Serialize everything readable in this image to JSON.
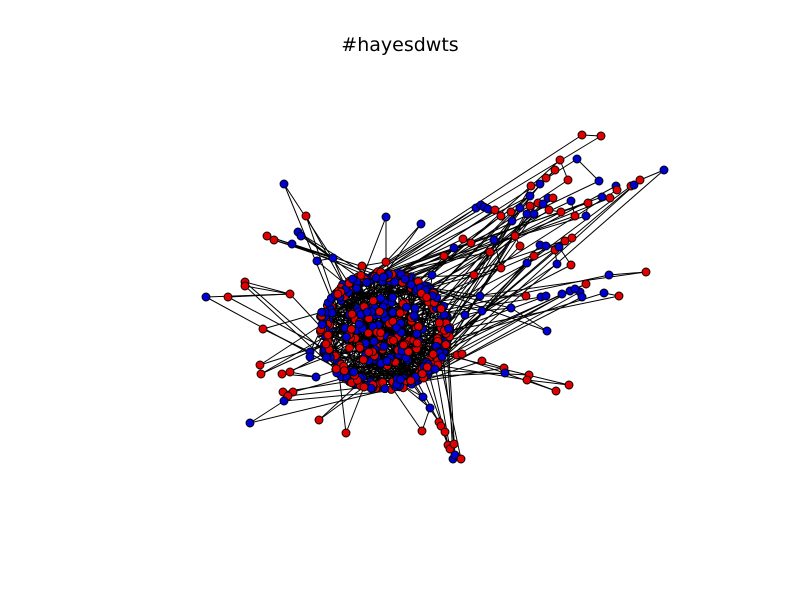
{
  "title": "#hayesdwts",
  "colors": {
    "red": "#e00000",
    "blue": "#0000d0",
    "edge": "#000000",
    "outline": "#000000"
  },
  "graph": {
    "hub_seed": 11,
    "hub_nodes": 460,
    "hub_edges": 330,
    "peripheral_nodes": [
      [
        "blue",
        284,
        184
      ],
      [
        "red",
        306,
        216
      ],
      [
        "blue",
        386,
        217
      ],
      [
        "blue",
        421,
        224
      ],
      [
        "red",
        267,
        236
      ],
      [
        "red",
        274,
        240
      ],
      [
        "blue",
        292,
        244
      ],
      [
        "blue",
        298,
        232
      ],
      [
        "blue",
        301,
        236
      ],
      [
        "blue",
        317,
        261
      ],
      [
        "red",
        386,
        262
      ],
      [
        "red",
        362,
        266
      ],
      [
        "blue",
        333,
        258
      ],
      [
        "red",
        245,
        282
      ],
      [
        "red",
        245,
        286
      ],
      [
        "blue",
        206,
        297
      ],
      [
        "red",
        228,
        297
      ],
      [
        "red",
        290,
        294
      ],
      [
        "red",
        263,
        329
      ],
      [
        "blue",
        310,
        352
      ],
      [
        "blue",
        310,
        357
      ],
      [
        "red",
        326,
        344
      ],
      [
        "red",
        260,
        365
      ],
      [
        "red",
        261,
        374
      ],
      [
        "red",
        290,
        372
      ],
      [
        "red",
        282,
        374
      ],
      [
        "blue",
        316,
        377
      ],
      [
        "red",
        293,
        392
      ],
      [
        "red",
        283,
        392
      ],
      [
        "red",
        288,
        396
      ],
      [
        "blue",
        284,
        401
      ],
      [
        "blue",
        250,
        423
      ],
      [
        "red",
        319,
        420
      ],
      [
        "red",
        346,
        433
      ],
      [
        "red",
        364,
        387
      ],
      [
        "blue",
        423,
        397
      ],
      [
        "blue",
        430,
        408
      ],
      [
        "red",
        422,
        431
      ],
      [
        "red",
        439,
        422
      ],
      [
        "red",
        441,
        426
      ],
      [
        "red",
        445,
        432
      ],
      [
        "red",
        448,
        445
      ],
      [
        "red",
        450,
        449
      ],
      [
        "red",
        454,
        444
      ],
      [
        "blue",
        453,
        459
      ],
      [
        "blue",
        455,
        455
      ],
      [
        "red",
        461,
        459
      ],
      [
        "red",
        457,
        355
      ],
      [
        "red",
        462,
        354
      ],
      [
        "red",
        482,
        361
      ],
      [
        "red",
        504,
        368
      ],
      [
        "blue",
        505,
        373
      ],
      [
        "red",
        529,
        375
      ],
      [
        "red",
        527,
        380
      ],
      [
        "red",
        569,
        385
      ],
      [
        "red",
        556,
        391
      ],
      [
        "blue",
        465,
        315
      ],
      [
        "blue",
        482,
        311
      ],
      [
        "blue",
        511,
        308
      ],
      [
        "blue",
        547,
        331
      ],
      [
        "blue",
        480,
        296
      ],
      [
        "red",
        526,
        296
      ],
      [
        "blue",
        541,
        297
      ],
      [
        "blue",
        546,
        296
      ],
      [
        "blue",
        562,
        294
      ],
      [
        "blue",
        570,
        291
      ],
      [
        "blue",
        580,
        292
      ],
      [
        "blue",
        582,
        297
      ],
      [
        "blue",
        575,
        289
      ],
      [
        "red",
        586,
        284
      ],
      [
        "blue",
        604,
        293
      ],
      [
        "red",
        619,
        296
      ],
      [
        "blue",
        609,
        275
      ],
      [
        "red",
        646,
        272
      ],
      [
        "red",
        463,
        239
      ],
      [
        "red",
        471,
        243
      ],
      [
        "red",
        474,
        275
      ],
      [
        "red",
        490,
        252
      ],
      [
        "blue",
        494,
        240
      ],
      [
        "red",
        501,
        268
      ],
      [
        "red",
        515,
        236
      ],
      [
        "red",
        520,
        246
      ],
      [
        "blue",
        527,
        263
      ],
      [
        "red",
        534,
        256
      ],
      [
        "blue",
        540,
        245
      ],
      [
        "blue",
        546,
        246
      ],
      [
        "red",
        555,
        250
      ],
      [
        "blue",
        557,
        264
      ],
      [
        "red",
        571,
        265
      ],
      [
        "blue",
        559,
        247
      ],
      [
        "red",
        565,
        241
      ],
      [
        "red",
        572,
        238
      ],
      [
        "blue",
        476,
        208
      ],
      [
        "blue",
        481,
        205
      ],
      [
        "blue",
        484,
        207
      ],
      [
        "blue",
        488,
        209
      ],
      [
        "red",
        495,
        210
      ],
      [
        "red",
        501,
        216
      ],
      [
        "red",
        511,
        212
      ],
      [
        "blue",
        512,
        221
      ],
      [
        "blue",
        520,
        208
      ],
      [
        "blue",
        527,
        214
      ],
      [
        "red",
        530,
        206
      ],
      [
        "blue",
        534,
        214
      ],
      [
        "red",
        538,
        203
      ],
      [
        "blue",
        543,
        204
      ],
      [
        "blue",
        548,
        198
      ],
      [
        "red",
        553,
        198
      ],
      [
        "red",
        549,
        210
      ],
      [
        "red",
        561,
        212
      ],
      [
        "blue",
        571,
        201
      ],
      [
        "red",
        575,
        216
      ],
      [
        "blue",
        586,
        216
      ],
      [
        "red",
        588,
        203
      ],
      [
        "blue",
        602,
        197
      ],
      [
        "red",
        610,
        198
      ],
      [
        "blue",
        616,
        186
      ],
      [
        "red",
        617,
        190
      ],
      [
        "red",
        631,
        186
      ],
      [
        "blue",
        634,
        185
      ],
      [
        "red",
        640,
        180
      ],
      [
        "blue",
        664,
        170
      ],
      [
        "red",
        531,
        186
      ],
      [
        "blue",
        540,
        184
      ],
      [
        "red",
        546,
        178
      ],
      [
        "red",
        555,
        170
      ],
      [
        "red",
        560,
        160
      ],
      [
        "red",
        568,
        180
      ],
      [
        "blue",
        577,
        159
      ],
      [
        "blue",
        599,
        181
      ],
      [
        "red",
        582,
        135
      ],
      [
        "red",
        601,
        136
      ],
      [
        "blue",
        530,
        196
      ],
      [
        "red",
        444,
        256
      ],
      [
        "blue",
        454,
        248
      ],
      [
        "blue",
        432,
        275
      ]
    ],
    "peripheral_edges": [
      [
        0,
        35
      ],
      [
        1,
        34
      ],
      [
        2,
        10
      ],
      [
        3,
        10
      ],
      [
        4,
        12
      ],
      [
        5,
        12
      ],
      [
        6,
        12
      ],
      [
        7,
        12
      ],
      [
        8,
        12
      ],
      [
        9,
        12
      ],
      [
        11,
        10
      ],
      [
        13,
        17
      ],
      [
        14,
        17
      ],
      [
        15,
        17
      ],
      [
        16,
        17
      ],
      [
        18,
        19
      ],
      [
        21,
        19
      ],
      [
        22,
        21
      ],
      [
        23,
        21
      ],
      [
        24,
        26
      ],
      [
        25,
        26
      ],
      [
        27,
        30
      ],
      [
        28,
        30
      ],
      [
        29,
        30
      ],
      [
        31,
        30
      ],
      [
        32,
        34
      ],
      [
        33,
        34
      ],
      [
        36,
        37
      ],
      [
        38,
        41
      ],
      [
        39,
        41
      ],
      [
        40,
        41
      ],
      [
        42,
        44
      ],
      [
        43,
        44
      ],
      [
        46,
        44
      ],
      [
        47,
        48
      ],
      [
        49,
        50
      ],
      [
        51,
        50
      ],
      [
        52,
        53
      ],
      [
        54,
        53
      ],
      [
        55,
        53
      ],
      [
        56,
        57
      ],
      [
        57,
        58
      ],
      [
        58,
        59
      ],
      [
        60,
        61
      ],
      [
        62,
        63
      ],
      [
        64,
        65
      ],
      [
        66,
        67
      ],
      [
        68,
        69
      ],
      [
        70,
        71
      ],
      [
        72,
        73
      ],
      [
        74,
        75
      ],
      [
        76,
        77
      ],
      [
        78,
        79
      ],
      [
        80,
        81
      ],
      [
        82,
        83
      ],
      [
        84,
        85
      ],
      [
        86,
        87
      ],
      [
        88,
        89
      ],
      [
        90,
        91
      ],
      [
        92,
        93
      ],
      [
        94,
        95
      ],
      [
        96,
        97
      ],
      [
        98,
        99
      ],
      [
        100,
        101
      ],
      [
        102,
        103
      ],
      [
        104,
        105
      ],
      [
        106,
        107
      ],
      [
        108,
        109
      ],
      [
        110,
        111
      ],
      [
        112,
        113
      ],
      [
        114,
        115
      ],
      [
        116,
        117
      ],
      [
        118,
        119
      ],
      [
        120,
        121
      ],
      [
        122,
        123
      ],
      [
        124,
        125
      ],
      [
        126,
        127
      ],
      [
        128,
        129
      ],
      [
        130,
        131
      ],
      [
        132,
        133
      ],
      [
        134,
        135
      ],
      [
        136,
        135
      ],
      [
        137,
        138
      ],
      [
        138,
        86
      ],
      [
        88,
        139
      ]
    ]
  }
}
